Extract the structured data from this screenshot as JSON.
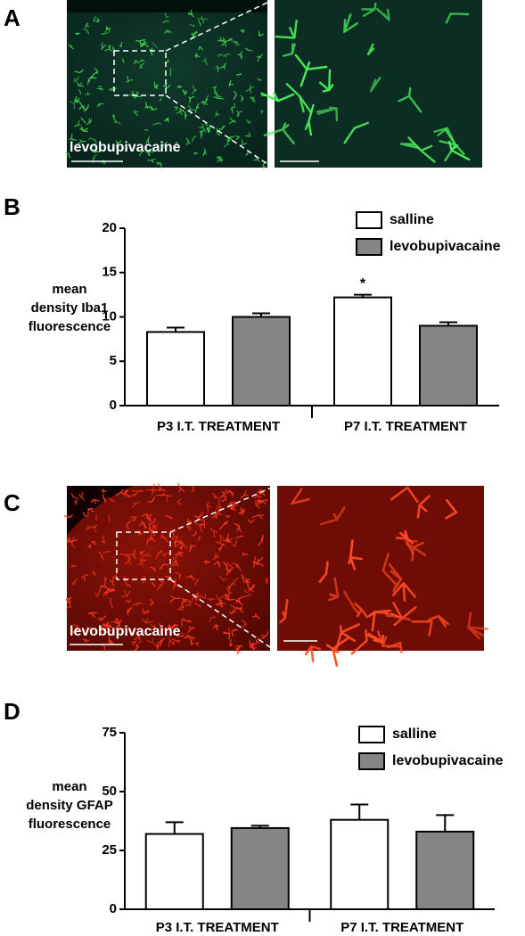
{
  "image_panels": [
    {
      "label": "A",
      "caption": "levobupivacaine"
    },
    {
      "label": "C",
      "caption": "levobupivacaine"
    }
  ],
  "chart_data": [
    {
      "type": "bar",
      "panel_label": "B",
      "ylabel": [
        "mean",
        "density Iba1",
        "fluorescence"
      ],
      "categories": [
        "P3 I.T. TREATMENT",
        "P7 I.T. TREATMENT"
      ],
      "series": [
        {
          "name": "salline",
          "color": "#ffffff",
          "values": [
            8.3,
            12.2
          ],
          "errors": [
            0.5,
            0.3
          ]
        },
        {
          "name": "levobupivacaine",
          "color": "#858585",
          "values": [
            10.0,
            9.0
          ],
          "errors": [
            0.4,
            0.4
          ]
        }
      ],
      "annotation": "*",
      "ylim": [
        0,
        20
      ],
      "yticks": [
        0,
        5,
        10,
        15,
        20
      ],
      "legend": "upper right"
    },
    {
      "type": "bar",
      "panel_label": "D",
      "ylabel": [
        "mean",
        "density GFAP",
        "fluorescence"
      ],
      "categories": [
        "P3 I.T. TREATMENT",
        "P7 I.T. TREATMENT"
      ],
      "series": [
        {
          "name": "salline",
          "color": "#ffffff",
          "values": [
            32,
            38
          ],
          "errors": [
            5,
            6.5
          ]
        },
        {
          "name": "levobupivacaine",
          "color": "#858585",
          "values": [
            34.5,
            33
          ],
          "errors": [
            1,
            7
          ]
        }
      ],
      "ylim": [
        0,
        75
      ],
      "yticks": [
        0,
        25,
        50,
        75
      ],
      "legend": "upper right"
    }
  ]
}
